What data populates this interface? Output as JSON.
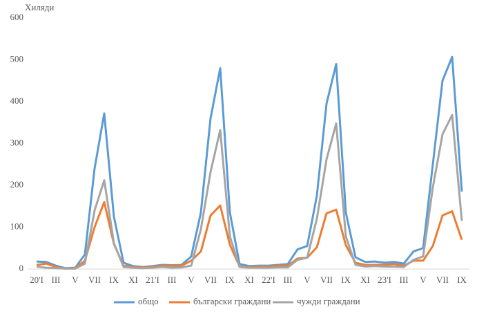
{
  "chart_data": {
    "type": "line",
    "y_axis_label": "Хиляди",
    "categories": [
      "20'I",
      null,
      "III",
      null,
      "V",
      null,
      "VII",
      null,
      "IX",
      null,
      "XI",
      null,
      "21'I",
      null,
      "III",
      null,
      "V",
      null,
      "VII",
      null,
      "IX",
      null,
      "XI",
      null,
      "22'I",
      null,
      "III",
      null,
      "V",
      null,
      "VII",
      null,
      "IX",
      null,
      "XI",
      null,
      "23'I",
      null,
      "III",
      null,
      "V",
      null,
      "VII",
      null,
      "IX"
    ],
    "series": [
      {
        "name": "общо",
        "color": "#5b9bd5",
        "values": [
          18,
          17,
          8,
          2,
          3,
          35,
          240,
          372,
          125,
          15,
          7,
          5,
          7,
          10,
          9,
          10,
          30,
          135,
          360,
          480,
          135,
          12,
          7,
          8,
          8,
          10,
          12,
          47,
          55,
          175,
          395,
          490,
          135,
          28,
          17,
          18,
          15,
          17,
          13,
          42,
          50,
          250,
          450,
          507,
          185
        ]
      },
      {
        "name": "български граждани",
        "color": "#ed7d31",
        "values": [
          10,
          13,
          5,
          1,
          2,
          20,
          100,
          160,
          60,
          8,
          5,
          4,
          5,
          8,
          8,
          8,
          20,
          42,
          128,
          152,
          58,
          6,
          5,
          6,
          6,
          8,
          8,
          25,
          27,
          52,
          133,
          142,
          57,
          15,
          10,
          10,
          10,
          12,
          8,
          20,
          20,
          55,
          128,
          138,
          70
        ]
      },
      {
        "name": "чужди граждани",
        "color": "#a5a5a5",
        "values": [
          6,
          3,
          2,
          1,
          1,
          13,
          140,
          212,
          62,
          5,
          3,
          2,
          3,
          5,
          3,
          4,
          8,
          95,
          232,
          332,
          78,
          5,
          3,
          3,
          3,
          4,
          4,
          22,
          27,
          120,
          262,
          348,
          78,
          10,
          6,
          7,
          6,
          6,
          5,
          22,
          30,
          195,
          322,
          368,
          115
        ]
      }
    ],
    "ylim": [
      0,
      600
    ],
    "yticks": [
      0,
      100,
      200,
      300,
      400,
      500,
      600
    ],
    "grid": false,
    "legend": "bottom"
  }
}
